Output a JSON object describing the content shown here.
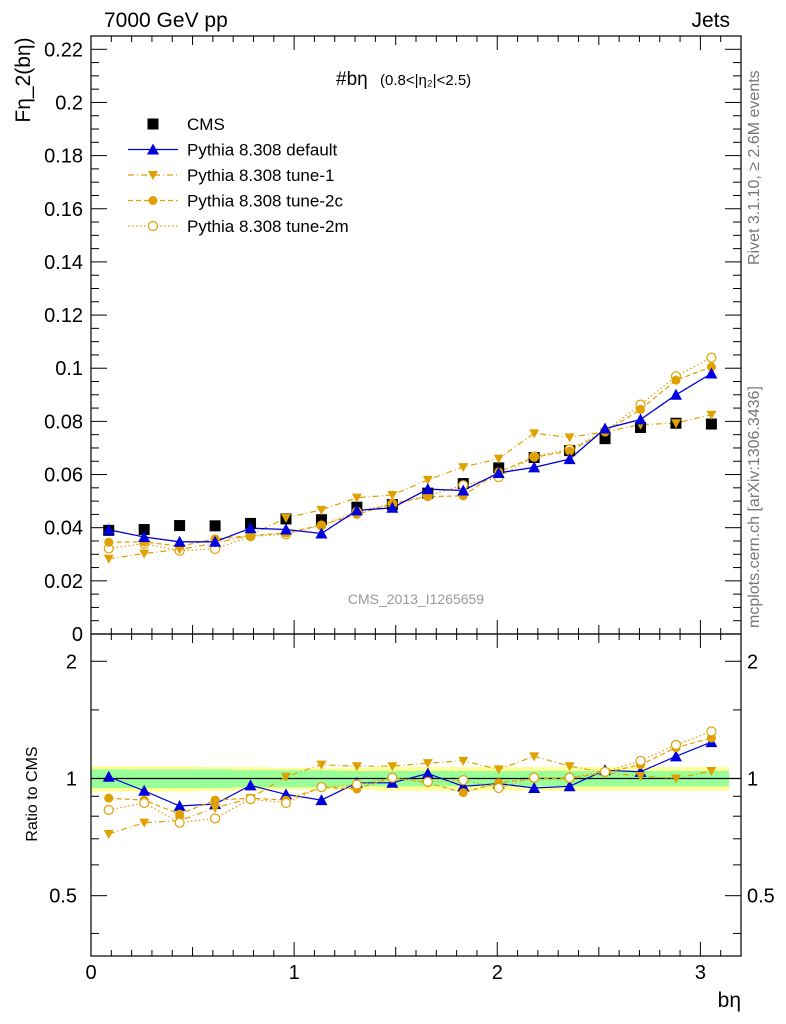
{
  "header": {
    "energy_label": "7000 GeV pp",
    "process_label": "Jets"
  },
  "side_text": {
    "rivet": "Rivet 3.1.10, ≥ 2.6M events",
    "source": "mcplots.cern.ch [arXiv:1306.3436]"
  },
  "chart_data": {
    "type": "line",
    "title_main": "#bη",
    "title_sub": "(0.8<|η₂|<2.5)",
    "watermark": "CMS_2013_I1265659",
    "xlabel": "bη",
    "ylabel": "Fη_2(bη)",
    "ratio_ylabel": "Ratio to CMS",
    "xlim": [
      0,
      3.2
    ],
    "ylim": [
      0,
      0.225
    ],
    "ratio_ylim": [
      0.35,
      2.35
    ],
    "x_ticks": [
      0,
      1,
      2,
      3
    ],
    "y_ticks": [
      0,
      0.02,
      0.04,
      0.06,
      0.08,
      0.1,
      0.12,
      0.14,
      0.16,
      0.18,
      0.2,
      0.22
    ],
    "y_tick_labels": [
      "0",
      "0.02",
      "0.04",
      "0.06",
      "0.08",
      "0.1",
      "0.12",
      "0.14",
      "0.16",
      "0.18",
      "0.2",
      "0.22"
    ],
    "ratio_ticks": [
      0.5,
      1,
      2
    ],
    "ratio_tick_labels": [
      "0.5",
      "1",
      "2"
    ],
    "legend_position": "top-left",
    "colors": {
      "cms": "#000000",
      "default": "#0000dd",
      "tune": "#e0a000",
      "band_inner": "#99ff99",
      "band_outer": "#ffff99"
    },
    "x": [
      0.0873,
      0.2618,
      0.4363,
      0.6109,
      0.7854,
      0.9599,
      1.1345,
      1.309,
      1.4835,
      1.6581,
      1.8326,
      2.0071,
      2.1817,
      2.3562,
      2.5307,
      2.7053,
      2.8798,
      3.0543
    ],
    "series": [
      {
        "name": "CMS",
        "marker": "square-filled",
        "line": "none",
        "values": [
          0.039,
          0.0393,
          0.0408,
          0.0407,
          0.0416,
          0.0433,
          0.043,
          0.0477,
          0.0487,
          0.053,
          0.0566,
          0.0625,
          0.0664,
          0.069,
          0.0735,
          0.0777,
          0.0793,
          0.079
        ]
      },
      {
        "name": "Pythia 8.308 default",
        "marker": "triangle-up-filled",
        "line": "solid",
        "values": [
          0.0392,
          0.0365,
          0.0347,
          0.0347,
          0.0398,
          0.0393,
          0.0378,
          0.0465,
          0.0475,
          0.0545,
          0.054,
          0.0606,
          0.0627,
          0.0658,
          0.0773,
          0.0807,
          0.09,
          0.098
        ]
      },
      {
        "name": "Pythia 8.308 tune-1",
        "marker": "triangle-down-filled",
        "line": "dashdot",
        "values": [
          0.0283,
          0.0303,
          0.0318,
          0.0342,
          0.0372,
          0.0437,
          0.0467,
          0.0513,
          0.0523,
          0.058,
          0.0628,
          0.066,
          0.0755,
          0.074,
          0.076,
          0.0788,
          0.0793,
          0.0825
        ]
      },
      {
        "name": "Pythia 8.308 tune-2c",
        "marker": "circle-filled",
        "line": "dashed",
        "values": [
          0.0345,
          0.0347,
          0.033,
          0.0358,
          0.037,
          0.038,
          0.041,
          0.045,
          0.049,
          0.0517,
          0.052,
          0.061,
          0.0665,
          0.0688,
          0.076,
          0.0845,
          0.0955,
          0.1005
        ]
      },
      {
        "name": "Pythia 8.308 tune-2m",
        "marker": "circle-open",
        "line": "dotted",
        "values": [
          0.0322,
          0.034,
          0.0313,
          0.032,
          0.0368,
          0.0375,
          0.0408,
          0.046,
          0.049,
          0.052,
          0.056,
          0.059,
          0.0668,
          0.0695,
          0.0763,
          0.0863,
          0.097,
          0.104
        ]
      }
    ],
    "ratio_series": [
      {
        "name": "Pythia 8.308 default",
        "values": [
          1.01,
          0.93,
          0.85,
          0.86,
          0.96,
          0.91,
          0.88,
          0.975,
          0.975,
          1.03,
          0.955,
          0.97,
          0.945,
          0.955,
          1.05,
          1.04,
          1.14,
          1.24
        ]
      },
      {
        "name": "Pythia 8.308 tune-1",
        "values": [
          0.72,
          0.77,
          0.78,
          0.84,
          0.89,
          1.01,
          1.085,
          1.075,
          1.075,
          1.095,
          1.11,
          1.055,
          1.14,
          1.075,
          1.035,
          1.015,
          1.0,
          1.045
        ]
      },
      {
        "name": "Pythia 8.308 tune-2c",
        "values": [
          0.89,
          0.88,
          0.81,
          0.88,
          0.89,
          0.88,
          0.95,
          0.94,
          1.005,
          0.975,
          0.92,
          0.975,
          1.0,
          1.0,
          1.035,
          1.085,
          1.2,
          1.27
        ]
      },
      {
        "name": "Pythia 8.308 tune-2m",
        "values": [
          0.83,
          0.865,
          0.77,
          0.79,
          0.885,
          0.865,
          0.95,
          0.965,
          1.005,
          0.98,
          0.99,
          0.945,
          1.005,
          1.005,
          1.04,
          1.11,
          1.22,
          1.32
        ]
      }
    ],
    "band_inner": [
      0.055,
      0.055,
      0.055,
      0.055,
      0.05,
      0.05,
      0.05,
      0.045,
      0.045,
      0.045,
      0.045,
      0.045,
      0.045,
      0.045,
      0.045,
      0.045,
      0.045,
      0.045
    ],
    "band_outer": [
      0.075,
      0.075,
      0.075,
      0.07,
      0.07,
      0.065,
      0.065,
      0.065,
      0.07,
      0.07,
      0.07,
      0.07,
      0.07,
      0.07,
      0.07,
      0.07,
      0.07,
      0.07
    ]
  }
}
